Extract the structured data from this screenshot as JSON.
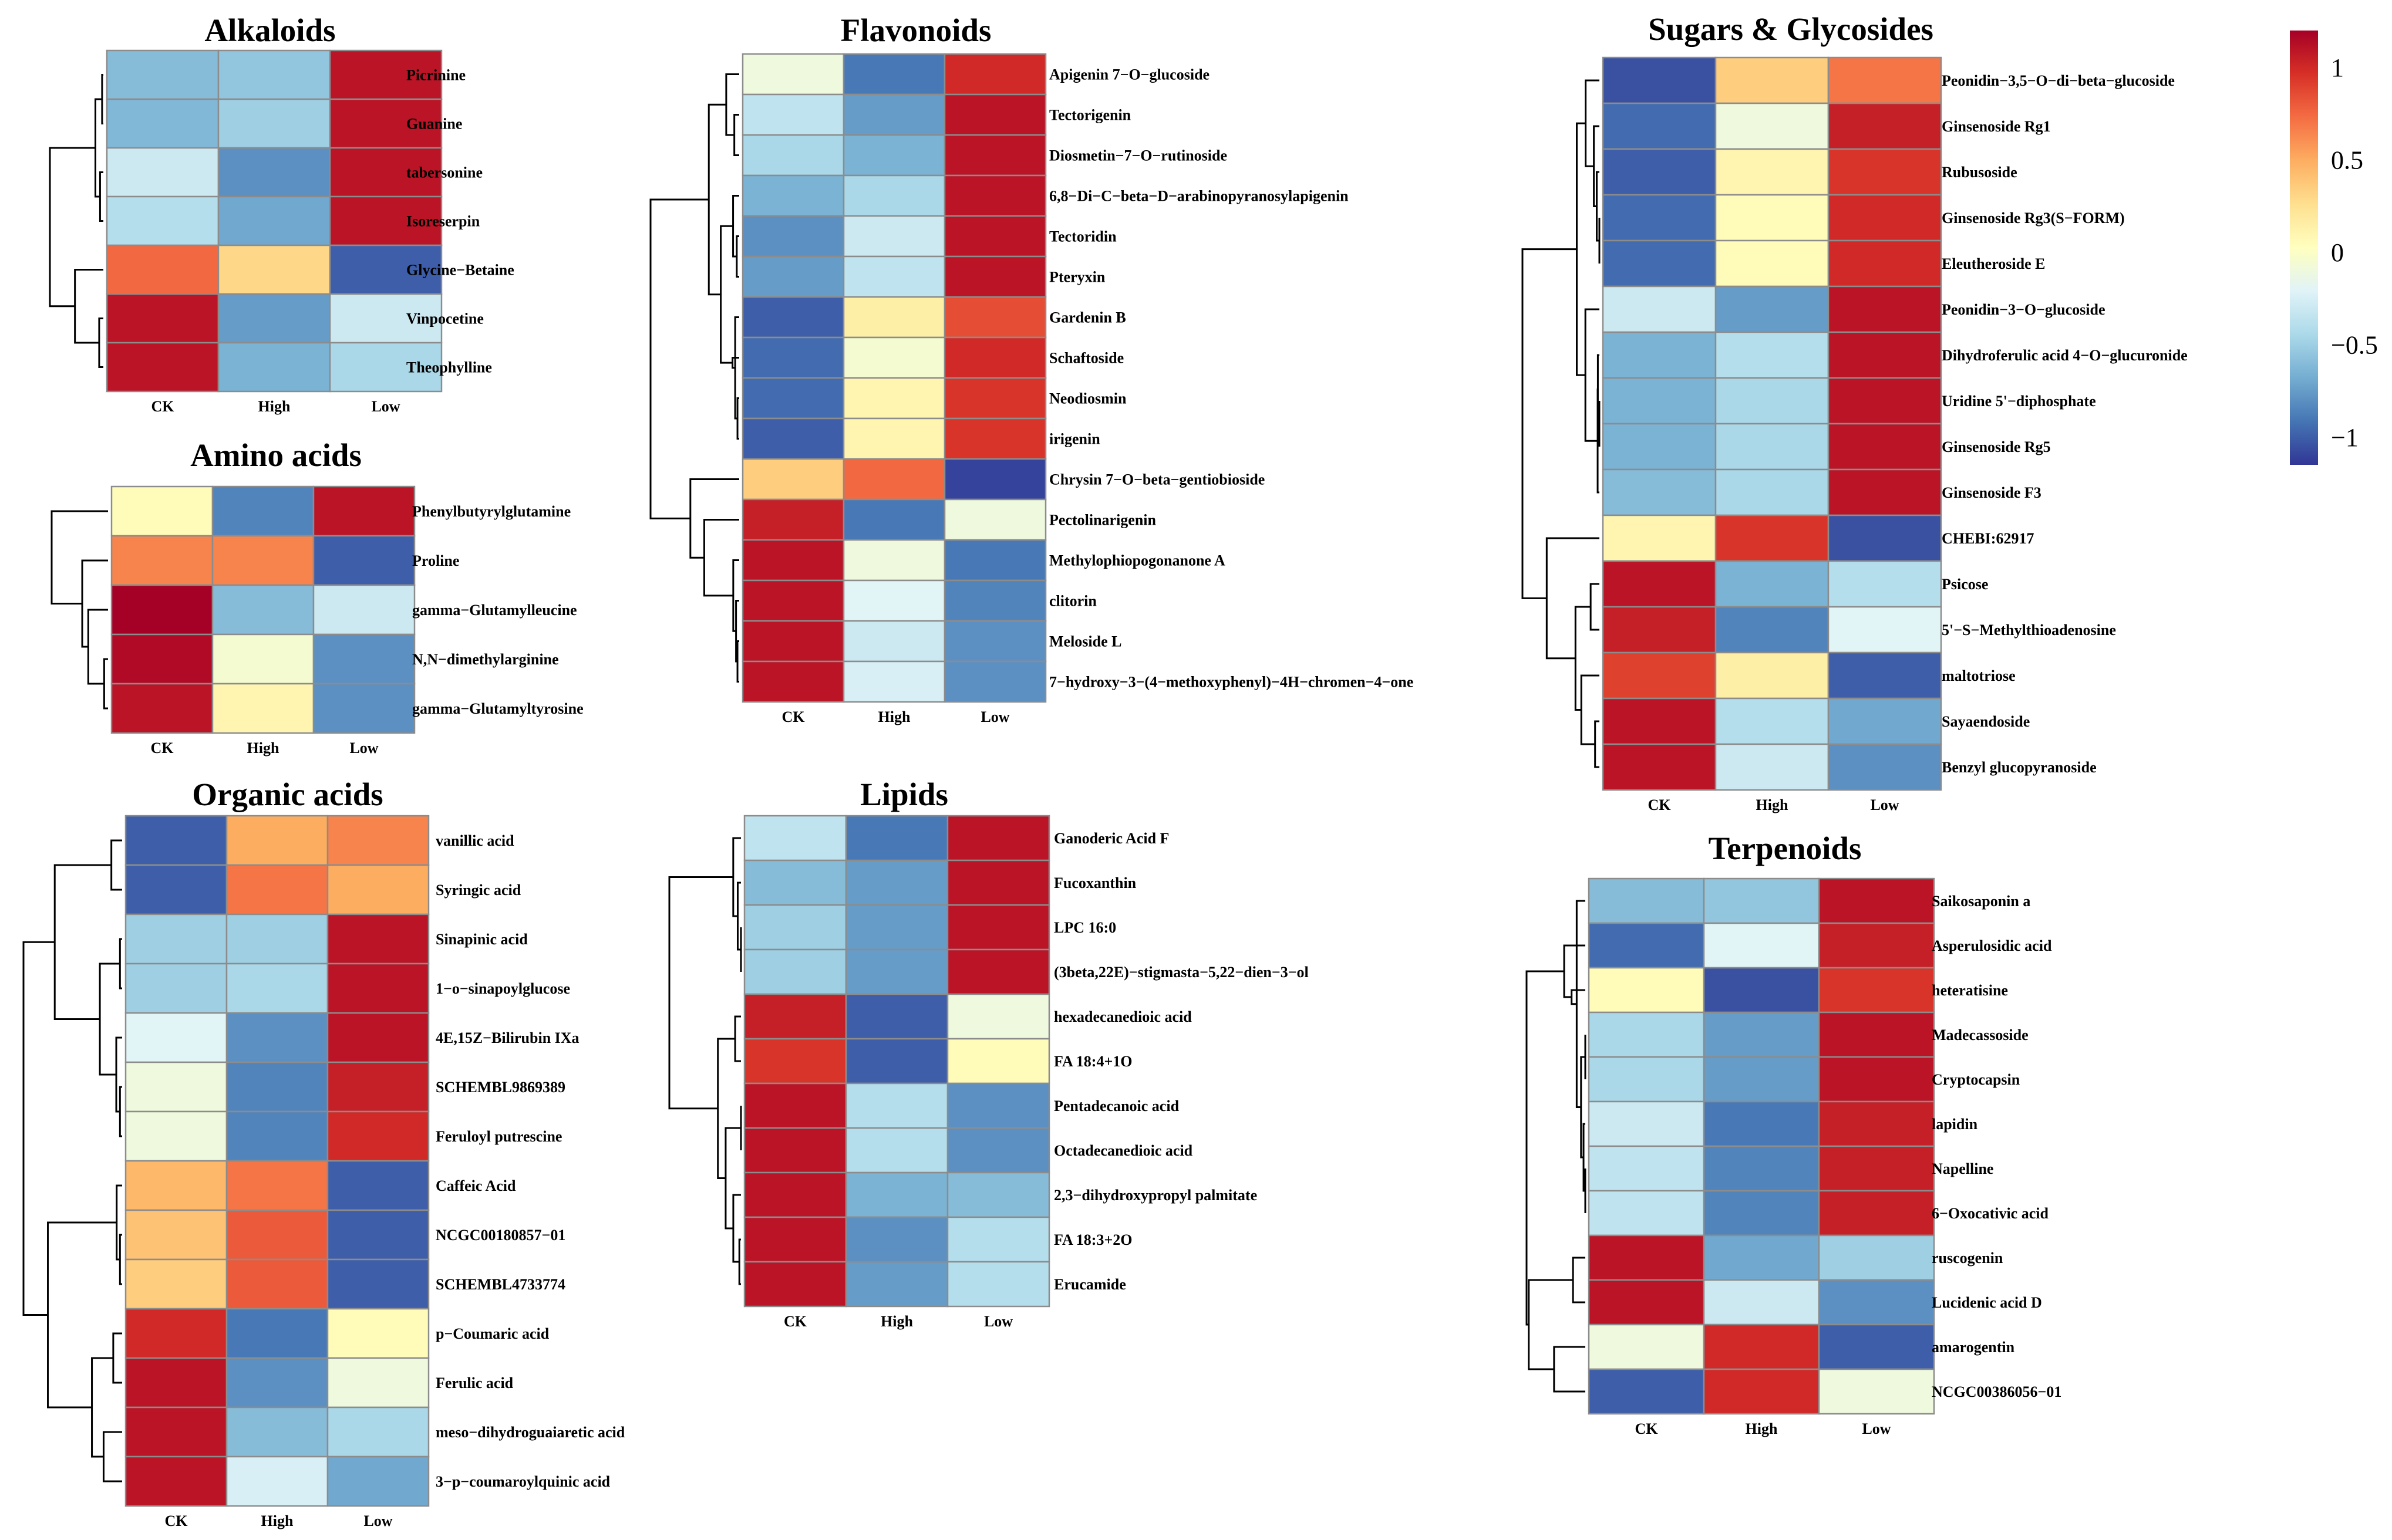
{
  "chart_data": [
    {
      "type": "heatmap",
      "title": "Alkaloids",
      "columns": [
        "CK",
        "High",
        "Low"
      ],
      "rows": [
        {
          "label": "Picrinine",
          "values": [
            -0.6,
            -0.55,
            1.1
          ]
        },
        {
          "label": "Guanine",
          "values": [
            -0.62,
            -0.5,
            1.1
          ]
        },
        {
          "label": "tabersonine",
          "values": [
            -0.3,
            -0.8,
            1.1
          ]
        },
        {
          "label": "Isoreserpin",
          "values": [
            -0.4,
            -0.7,
            1.1
          ]
        },
        {
          "label": "Glycine−Betaine",
          "values": [
            0.75,
            0.3,
            -1.0
          ]
        },
        {
          "label": "Vinpocetine",
          "values": [
            1.1,
            -0.75,
            -0.3
          ]
        },
        {
          "label": "Theophylline",
          "values": [
            1.1,
            -0.65,
            -0.45
          ]
        }
      ]
    },
    {
      "type": "heatmap",
      "title": "Amino acids",
      "columns": [
        "CK",
        "High",
        "Low"
      ],
      "rows": [
        {
          "label": "Phenylbutyrylglutamine",
          "values": [
            0.05,
            -0.85,
            1.1
          ]
        },
        {
          "label": "Proline",
          "values": [
            0.65,
            0.65,
            -1.0
          ]
        },
        {
          "label": "gamma−Glutamylleucine",
          "values": [
            1.2,
            -0.6,
            -0.3
          ]
        },
        {
          "label": "N,N−dimethylarginine",
          "values": [
            1.15,
            -0.05,
            -0.8
          ]
        },
        {
          "label": "gamma−Glutamyltyrosine",
          "values": [
            1.1,
            0.1,
            -0.8
          ]
        }
      ]
    },
    {
      "type": "heatmap",
      "title": "Flavonoids",
      "columns": [
        "CK",
        "High",
        "Low"
      ],
      "rows": [
        {
          "label": "Apigenin 7−O−glucoside",
          "values": [
            -0.1,
            -0.9,
            1.0
          ]
        },
        {
          "label": "Tectorigenin",
          "values": [
            -0.35,
            -0.75,
            1.1
          ]
        },
        {
          "label": "Diosmetin−7−O−rutinoside",
          "values": [
            -0.45,
            -0.65,
            1.1
          ]
        },
        {
          "label": "6,8−Di−C−beta−D−arabinopyranosylapigenin",
          "values": [
            -0.65,
            -0.45,
            1.1
          ]
        },
        {
          "label": "Tectoridin",
          "values": [
            -0.8,
            -0.3,
            1.1
          ]
        },
        {
          "label": "Pteryxin",
          "values": [
            -0.75,
            -0.35,
            1.1
          ]
        },
        {
          "label": "Gardenin B",
          "values": [
            -1.0,
            0.15,
            0.85
          ]
        },
        {
          "label": "Schaftoside",
          "values": [
            -0.95,
            -0.05,
            1.0
          ]
        },
        {
          "label": "Neodiosmin",
          "values": [
            -0.95,
            0.1,
            0.95
          ]
        },
        {
          "label": "irigenin",
          "values": [
            -1.0,
            0.1,
            0.95
          ]
        },
        {
          "label": "Chrysin 7−O−beta−gentiobioside",
          "values": [
            0.35,
            0.75,
            -1.1
          ]
        },
        {
          "label": "Pectolinarigenin",
          "values": [
            1.05,
            -0.9,
            -0.1
          ]
        },
        {
          "label": "Methylophiopogonanone A",
          "values": [
            1.1,
            -0.1,
            -0.9
          ]
        },
        {
          "label": "clitorin",
          "values": [
            1.1,
            -0.2,
            -0.85
          ]
        },
        {
          "label": "Meloside L",
          "values": [
            1.1,
            -0.3,
            -0.8
          ]
        },
        {
          "label": "7−hydroxy−3−(4−methoxyphenyl)−4H−chromen−4−one",
          "values": [
            1.1,
            -0.25,
            -0.8
          ]
        }
      ]
    },
    {
      "type": "heatmap",
      "title": "Lipids",
      "columns": [
        "CK",
        "High",
        "Low"
      ],
      "rows": [
        {
          "label": "Ganoderic Acid F",
          "values": [
            -0.35,
            -0.9,
            1.1
          ]
        },
        {
          "label": "Fucoxanthin",
          "values": [
            -0.6,
            -0.75,
            1.1
          ]
        },
        {
          "label": "LPC 16:0",
          "values": [
            -0.5,
            -0.75,
            1.1
          ]
        },
        {
          "label": "(3beta,22E)−stigmasta−5,22−dien−3−ol",
          "values": [
            -0.5,
            -0.75,
            1.1
          ]
        },
        {
          "label": "hexadecanedioic acid",
          "values": [
            1.05,
            -1.0,
            -0.1
          ]
        },
        {
          "label": "FA 18:4+1O",
          "values": [
            0.95,
            -1.0,
            0.05
          ]
        },
        {
          "label": "Pentadecanoic acid",
          "values": [
            1.1,
            -0.4,
            -0.8
          ]
        },
        {
          "label": "Octadecanedioic acid",
          "values": [
            1.1,
            -0.4,
            -0.8
          ]
        },
        {
          "label": "2,3−dihydroxypropyl palmitate",
          "values": [
            1.1,
            -0.65,
            -0.6
          ]
        },
        {
          "label": "FA 18:3+2O",
          "values": [
            1.1,
            -0.8,
            -0.4
          ]
        },
        {
          "label": "Erucamide",
          "values": [
            1.1,
            -0.75,
            -0.4
          ]
        }
      ]
    },
    {
      "type": "heatmap",
      "title": "Organic acids",
      "columns": [
        "CK",
        "High",
        "Low"
      ],
      "rows": [
        {
          "label": "vanillic acid",
          "values": [
            -1.0,
            0.5,
            0.65
          ]
        },
        {
          "label": "Syringic acid",
          "values": [
            -1.0,
            0.7,
            0.5
          ]
        },
        {
          "label": "Sinapinic acid",
          "values": [
            -0.5,
            -0.5,
            1.1
          ]
        },
        {
          "label": "1−o−sinapoylglucose",
          "values": [
            -0.5,
            -0.45,
            1.1
          ]
        },
        {
          "label": "4E,15Z−Bilirubin IXa",
          "values": [
            -0.2,
            -0.8,
            1.1
          ]
        },
        {
          "label": "SCHEMBL9869389",
          "values": [
            -0.1,
            -0.85,
            1.05
          ]
        },
        {
          "label": "Feruloyl putrescine",
          "values": [
            -0.1,
            -0.85,
            1.0
          ]
        },
        {
          "label": "Caffeic Acid",
          "values": [
            0.45,
            0.7,
            -1.0
          ]
        },
        {
          "label": "NCGC00180857−01",
          "values": [
            0.4,
            0.8,
            -1.0
          ]
        },
        {
          "label": "SCHEMBL4733774",
          "values": [
            0.35,
            0.8,
            -1.0
          ]
        },
        {
          "label": "p−Coumaric acid",
          "values": [
            1.0,
            -0.9,
            0.05
          ]
        },
        {
          "label": "Ferulic acid",
          "values": [
            1.1,
            -0.8,
            -0.1
          ]
        },
        {
          "label": "meso−dihydroguaiaretic acid",
          "values": [
            1.1,
            -0.6,
            -0.45
          ]
        },
        {
          "label": "3−p−coumaroylquinic acid",
          "values": [
            1.1,
            -0.25,
            -0.7
          ]
        }
      ]
    },
    {
      "type": "heatmap",
      "title": "Sugars & Glycosides",
      "columns": [
        "CK",
        "High",
        "Low"
      ],
      "rows": [
        {
          "label": "Peonidin−3,5−O−di−beta−glucoside",
          "values": [
            -1.05,
            0.35,
            0.7
          ]
        },
        {
          "label": "Ginsenoside Rg1",
          "values": [
            -0.95,
            -0.1,
            1.05
          ]
        },
        {
          "label": "Rubusoside",
          "values": [
            -1.0,
            0.1,
            0.95
          ]
        },
        {
          "label": "Ginsenoside Rg3(S−FORM)",
          "values": [
            -0.95,
            0.05,
            1.0
          ]
        },
        {
          "label": "Eleutheroside E",
          "values": [
            -0.95,
            0.05,
            1.0
          ]
        },
        {
          "label": "Peonidin−3−O−glucoside",
          "values": [
            -0.3,
            -0.75,
            1.1
          ]
        },
        {
          "label": "Dihydroferulic acid 4−O−glucuronide",
          "values": [
            -0.65,
            -0.4,
            1.1
          ]
        },
        {
          "label": "Uridine 5'−diphosphate",
          "values": [
            -0.65,
            -0.45,
            1.1
          ]
        },
        {
          "label": "Ginsenoside Rg5",
          "values": [
            -0.65,
            -0.45,
            1.1
          ]
        },
        {
          "label": "Ginsenoside F3",
          "values": [
            -0.6,
            -0.45,
            1.1
          ]
        },
        {
          "label": "CHEBI:62917",
          "values": [
            0.1,
            0.95,
            -1.05
          ]
        },
        {
          "label": "Psicose",
          "values": [
            1.1,
            -0.65,
            -0.4
          ]
        },
        {
          "label": "5'−S−Methylthioadenosine",
          "values": [
            1.05,
            -0.85,
            -0.2
          ]
        },
        {
          "label": "maltotriose",
          "values": [
            0.9,
            0.15,
            -1.0
          ]
        },
        {
          "label": "Sayaendoside",
          "values": [
            1.1,
            -0.4,
            -0.7
          ]
        },
        {
          "label": "Benzyl glucopyranoside",
          "values": [
            1.1,
            -0.3,
            -0.8
          ]
        }
      ]
    },
    {
      "type": "heatmap",
      "title": "Terpenoids",
      "columns": [
        "CK",
        "High",
        "Low"
      ],
      "rows": [
        {
          "label": "Saikosaponin a",
          "values": [
            -0.6,
            -0.55,
            1.1
          ]
        },
        {
          "label": "Asperulosidic acid",
          "values": [
            -0.95,
            -0.2,
            1.05
          ]
        },
        {
          "label": "heteratisine",
          "values": [
            0.05,
            -1.05,
            0.95
          ]
        },
        {
          "label": "Madecassoside",
          "values": [
            -0.45,
            -0.75,
            1.1
          ]
        },
        {
          "label": "Cryptocapsin",
          "values": [
            -0.45,
            -0.75,
            1.1
          ]
        },
        {
          "label": "lapidin",
          "values": [
            -0.3,
            -0.9,
            1.05
          ]
        },
        {
          "label": "Napelline",
          "values": [
            -0.35,
            -0.85,
            1.05
          ]
        },
        {
          "label": "6−Oxocativic acid",
          "values": [
            -0.35,
            -0.85,
            1.05
          ]
        },
        {
          "label": "ruscogenin",
          "values": [
            1.1,
            -0.7,
            -0.5
          ]
        },
        {
          "label": "Lucidenic acid D",
          "values": [
            1.1,
            -0.3,
            -0.8
          ]
        },
        {
          "label": "amarogentin",
          "values": [
            -0.1,
            1.0,
            -1.0
          ]
        },
        {
          "label": "NCGC00386056−01",
          "values": [
            -1.0,
            1.0,
            -0.1
          ]
        }
      ]
    }
  ],
  "legend": {
    "min": -1.15,
    "max": 1.2,
    "ticks": [
      {
        "value": 1,
        "label": "1"
      },
      {
        "value": 0.5,
        "label": "0.5"
      },
      {
        "value": 0,
        "label": "0"
      },
      {
        "value": -0.5,
        "label": "−0.5"
      },
      {
        "value": -1,
        "label": "−1"
      }
    ],
    "colors": [
      "#313695",
      "#4575b4",
      "#74add1",
      "#abd9e9",
      "#e0f3f8",
      "#ffffbf",
      "#fee090",
      "#fdae61",
      "#f46d43",
      "#d73027",
      "#a50026"
    ]
  }
}
